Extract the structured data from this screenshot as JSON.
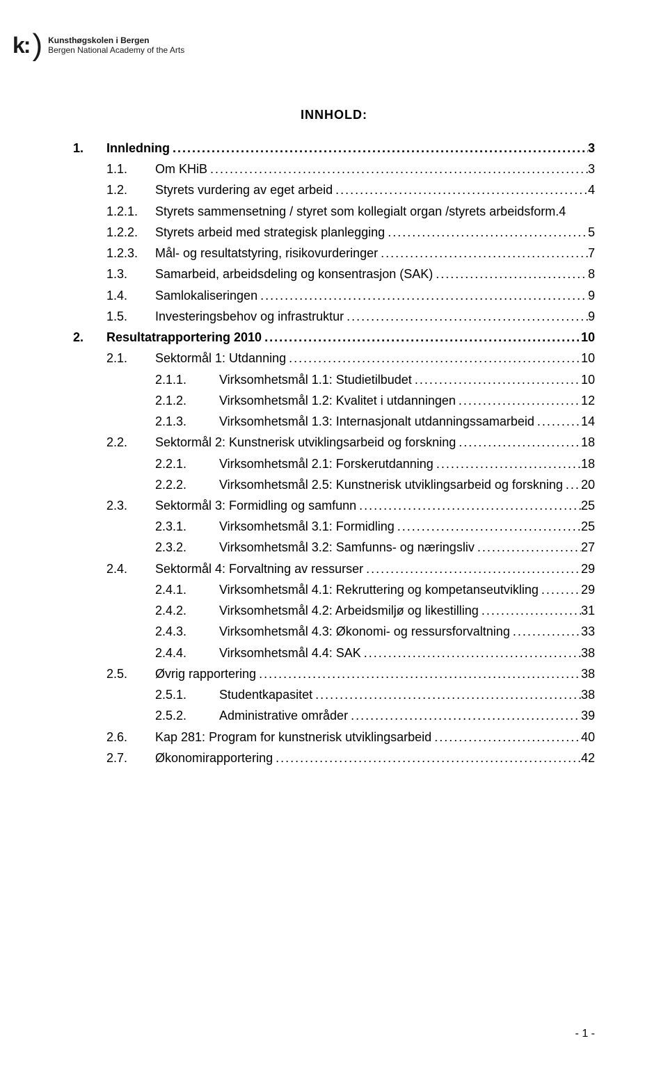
{
  "header": {
    "logo_k": "k:",
    "logo_paren": ")",
    "org_name_1": "Kunsthøgskolen i Bergen",
    "org_name_2": "Bergen National Academy of the Arts"
  },
  "title": "INNHOLD:",
  "toc": [
    {
      "level": 0,
      "num": "1.",
      "text": "Innledning",
      "page": "3"
    },
    {
      "level": 1,
      "num": "1.1.",
      "text": "Om KHiB",
      "page": "3"
    },
    {
      "level": 1,
      "num": "1.2.",
      "text": "Styrets vurdering av eget arbeid",
      "page": "4"
    },
    {
      "level": 1,
      "num": "1.2.1.",
      "text": "Styrets sammensetning / styret som kollegialt organ /styrets arbeidsform.",
      "page": "4",
      "no_dots": true
    },
    {
      "level": 1,
      "num": "1.2.2.",
      "text": "Styrets arbeid med strategisk planlegging",
      "page": "5"
    },
    {
      "level": 1,
      "num": "1.2.3.",
      "text": "Mål- og resultatstyring, risikovurderinger",
      "page": "7"
    },
    {
      "level": 1,
      "num": "1.3.",
      "text": "Samarbeid, arbeidsdeling og konsentrasjon (SAK)",
      "page": "8"
    },
    {
      "level": 1,
      "num": "1.4.",
      "text": "Samlokaliseringen",
      "page": "9"
    },
    {
      "level": 1,
      "num": "1.5.",
      "text": "Investeringsbehov og infrastruktur",
      "page": "9"
    },
    {
      "level": 0,
      "num": "2.",
      "text": "Resultatrapportering 2010",
      "page": "10"
    },
    {
      "level": 1,
      "num": "2.1.",
      "text": "Sektormål 1: Utdanning",
      "page": "10"
    },
    {
      "level": 2,
      "num": "2.1.1.",
      "text": "Virksomhetsmål 1.1: Studietilbudet",
      "page": "10"
    },
    {
      "level": 2,
      "num": "2.1.2.",
      "text": "Virksomhetsmål 1.2: Kvalitet i utdanningen",
      "page": "12"
    },
    {
      "level": 2,
      "num": "2.1.3.",
      "text": "Virksomhetsmål 1.3: Internasjonalt utdanningssamarbeid",
      "page": "14"
    },
    {
      "level": 1,
      "num": "2.2.",
      "text": "Sektormål 2: Kunstnerisk utviklingsarbeid og forskning",
      "page": "18"
    },
    {
      "level": 2,
      "num": "2.2.1.",
      "text": "Virksomhetsmål 2.1: Forskerutdanning",
      "page": "18"
    },
    {
      "level": 2,
      "num": "2.2.2.",
      "text": "Virksomhetsmål 2.5: Kunstnerisk utviklingsarbeid og forskning",
      "page": "20"
    },
    {
      "level": 1,
      "num": "2.3.",
      "text": "Sektormål 3: Formidling og samfunn",
      "page": "25"
    },
    {
      "level": 2,
      "num": "2.3.1.",
      "text": "Virksomhetsmål 3.1: Formidling",
      "page": "25"
    },
    {
      "level": 2,
      "num": "2.3.2.",
      "text": "Virksomhetsmål 3.2: Samfunns- og næringsliv",
      "page": "27"
    },
    {
      "level": 1,
      "num": "2.4.",
      "text": "Sektormål 4: Forvaltning av ressurser",
      "page": "29"
    },
    {
      "level": 2,
      "num": "2.4.1.",
      "text": "Virksomhetsmål 4.1: Rekruttering og kompetanseutvikling",
      "page": "29"
    },
    {
      "level": 2,
      "num": "2.4.2.",
      "text": "Virksomhetsmål 4.2: Arbeidsmiljø og likestilling",
      "page": "31"
    },
    {
      "level": 2,
      "num": "2.4.3.",
      "text": "Virksomhetsmål 4.3: Økonomi- og ressursforvaltning",
      "page": "33"
    },
    {
      "level": 2,
      "num": "2.4.4.",
      "text": "Virksomhetsmål 4.4: SAK",
      "page": "38"
    },
    {
      "level": 1,
      "num": "2.5.",
      "text": "Øvrig rapportering",
      "page": "38"
    },
    {
      "level": 2,
      "num": "2.5.1.",
      "text": "Studentkapasitet",
      "page": "38"
    },
    {
      "level": 2,
      "num": "2.5.2.",
      "text": "Administrative områder",
      "page": "39"
    },
    {
      "level": 1,
      "num": "2.6.",
      "text": "Kap 281: Program for kunstnerisk utviklingsarbeid",
      "page": "40"
    },
    {
      "level": 1,
      "num": "2.7.",
      "text": "Økonomirapportering",
      "page": "42"
    }
  ],
  "page_number": "- 1 -"
}
